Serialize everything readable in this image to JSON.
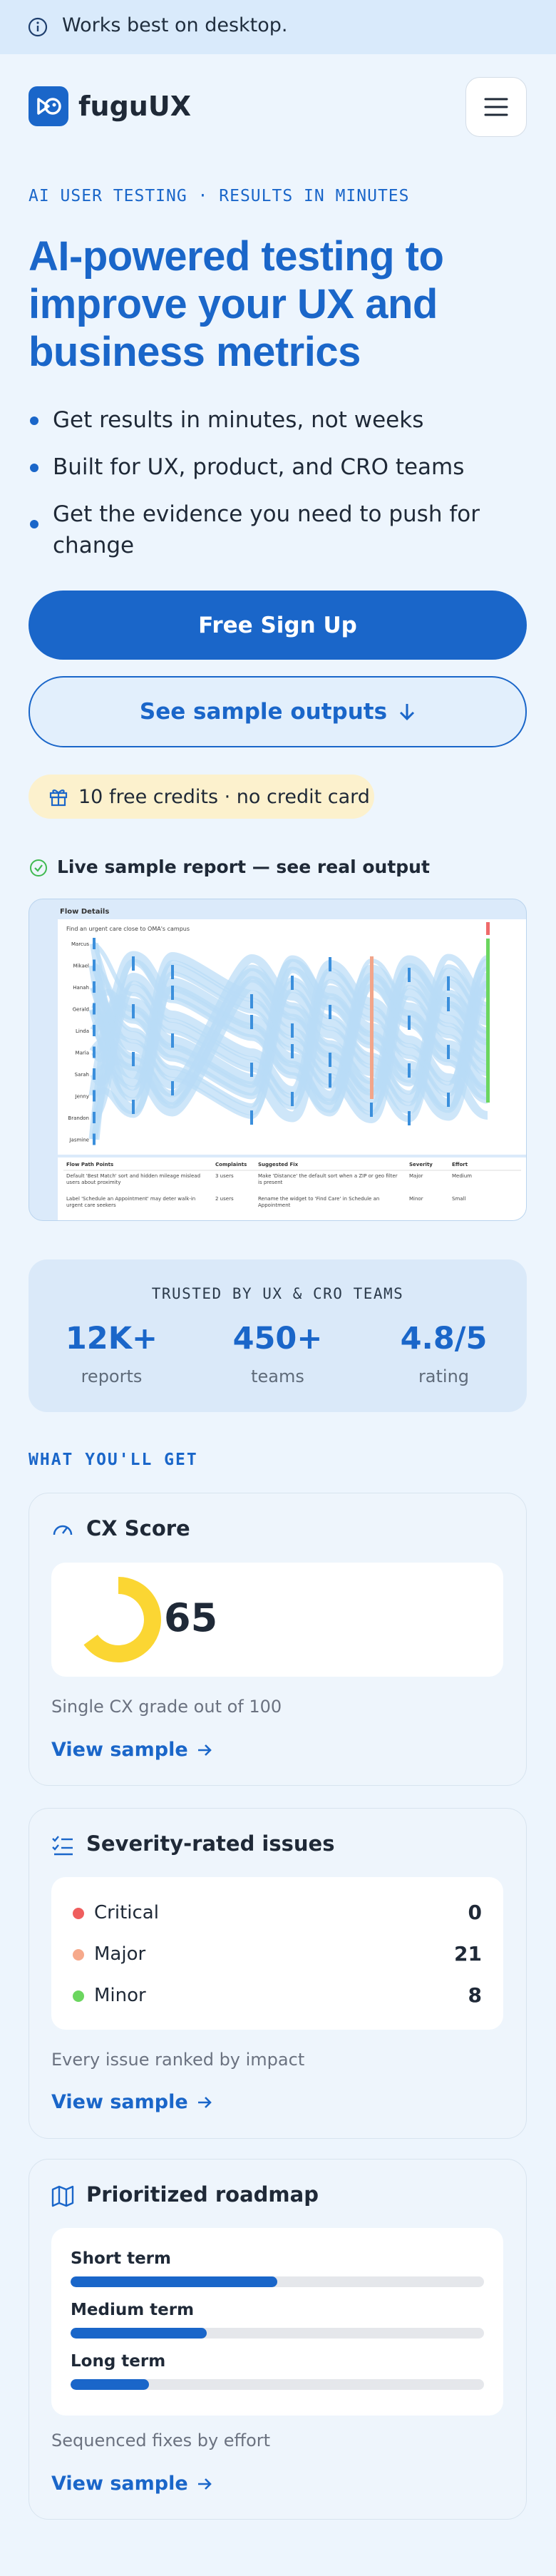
{
  "banner": {
    "text": "Works best on desktop."
  },
  "header": {
    "brand": "fuguUX"
  },
  "hero": {
    "eyebrow": "AI USER TESTING · RESULTS IN MINUTES",
    "title": "AI-powered testing to improve your UX and business metrics",
    "bullets": [
      "Get results in minutes, not weeks",
      "Built for UX, product, and CRO teams",
      "Get the evidence you need to push for change"
    ],
    "primary_button": "Free Sign Up",
    "secondary_button": "See sample outputs",
    "credits": "10 free credits · no credit card"
  },
  "sample": {
    "label": "Live sample report — see real output",
    "report": {
      "title": "Flow Details",
      "task": "Find an urgent care close to OMA's campus",
      "participants": [
        "Marcus",
        "Mikael",
        "Hanah",
        "Gerald",
        "Linda",
        "Maria",
        "Sarah",
        "Jenny",
        "Brandon",
        "Jasmine"
      ],
      "columns": [
        "Flow Path Points",
        "Complaints",
        "Suggested Fix",
        "Severity",
        "Effort"
      ],
      "rows": [
        [
          "Default 'Best Match' sort and hidden mileage mislead users about proximity",
          "3 users",
          "Make 'Distance' the default sort when a ZIP or geo filter is present",
          "Major",
          "Medium"
        ],
        [
          "Label 'Schedule an Appointment' may deter walk-in urgent care seekers",
          "2 users",
          "Rename the widget to 'Find Care' in Schedule an Appointment",
          "Minor",
          "Small"
        ]
      ]
    }
  },
  "trust": {
    "title": "TRUSTED BY UX & CRO TEAMS",
    "stats": [
      {
        "value": "12K+",
        "label": "reports"
      },
      {
        "value": "450+",
        "label": "teams"
      },
      {
        "value": "4.8/5",
        "label": "rating"
      }
    ]
  },
  "features": {
    "heading": "WHAT YOU'LL GET",
    "cx": {
      "title": "CX Score",
      "score": 65,
      "scale_max": 100,
      "color": "#fbd633",
      "caption": "Single CX grade out of 100",
      "link": "View sample"
    },
    "severity": {
      "title": "Severity-rated issues",
      "rows": [
        {
          "label": "Critical",
          "count": 0,
          "color": "#ef5e5e"
        },
        {
          "label": "Major",
          "count": 21,
          "color": "#f6a98b"
        },
        {
          "label": "Minor",
          "count": 8,
          "color": "#6bd65f"
        }
      ],
      "caption": "Every issue ranked by impact",
      "link": "View sample"
    },
    "roadmap": {
      "title": "Prioritized roadmap",
      "items": [
        {
          "label": "Short term",
          "progress": 50
        },
        {
          "label": "Medium term",
          "progress": 33
        },
        {
          "label": "Long term",
          "progress": 19
        }
      ],
      "caption": "Sequenced fixes by effort",
      "link": "View sample"
    }
  }
}
